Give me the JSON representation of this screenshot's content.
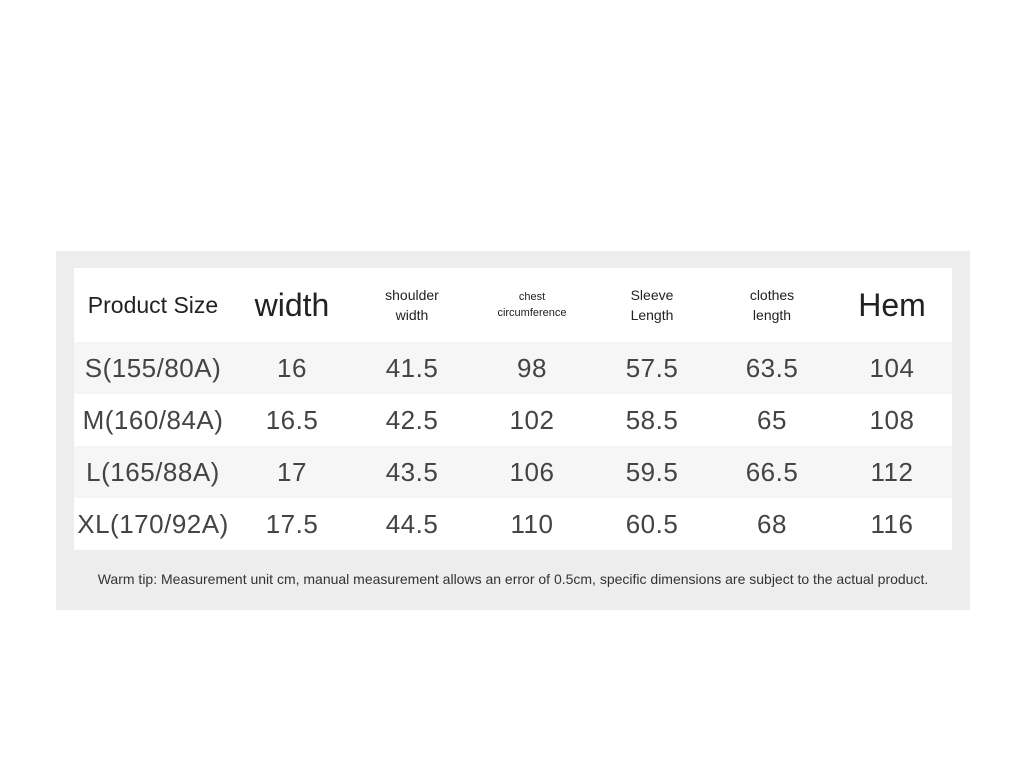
{
  "table": {
    "header": [
      "Product Size",
      "width",
      "shoulder width",
      "chest circumference",
      "Sleeve Length",
      "clothes length",
      "Hem"
    ],
    "rows": [
      [
        "S(155/80A)",
        16,
        41.5,
        98,
        57.5,
        63.5,
        104
      ],
      [
        "M(160/84A)",
        16.5,
        42.5,
        102,
        58.5,
        65,
        108
      ],
      [
        "L(165/88A)",
        17,
        43.5,
        106,
        59.5,
        66.5,
        112
      ],
      [
        "XL(170/92A)",
        17.5,
        44.5,
        110,
        60.5,
        68,
        116
      ]
    ]
  },
  "footer": "Warm tip: Measurement unit cm, manual measurement allows an error of 0.5cm, specific dimensions are subject to the actual product."
}
